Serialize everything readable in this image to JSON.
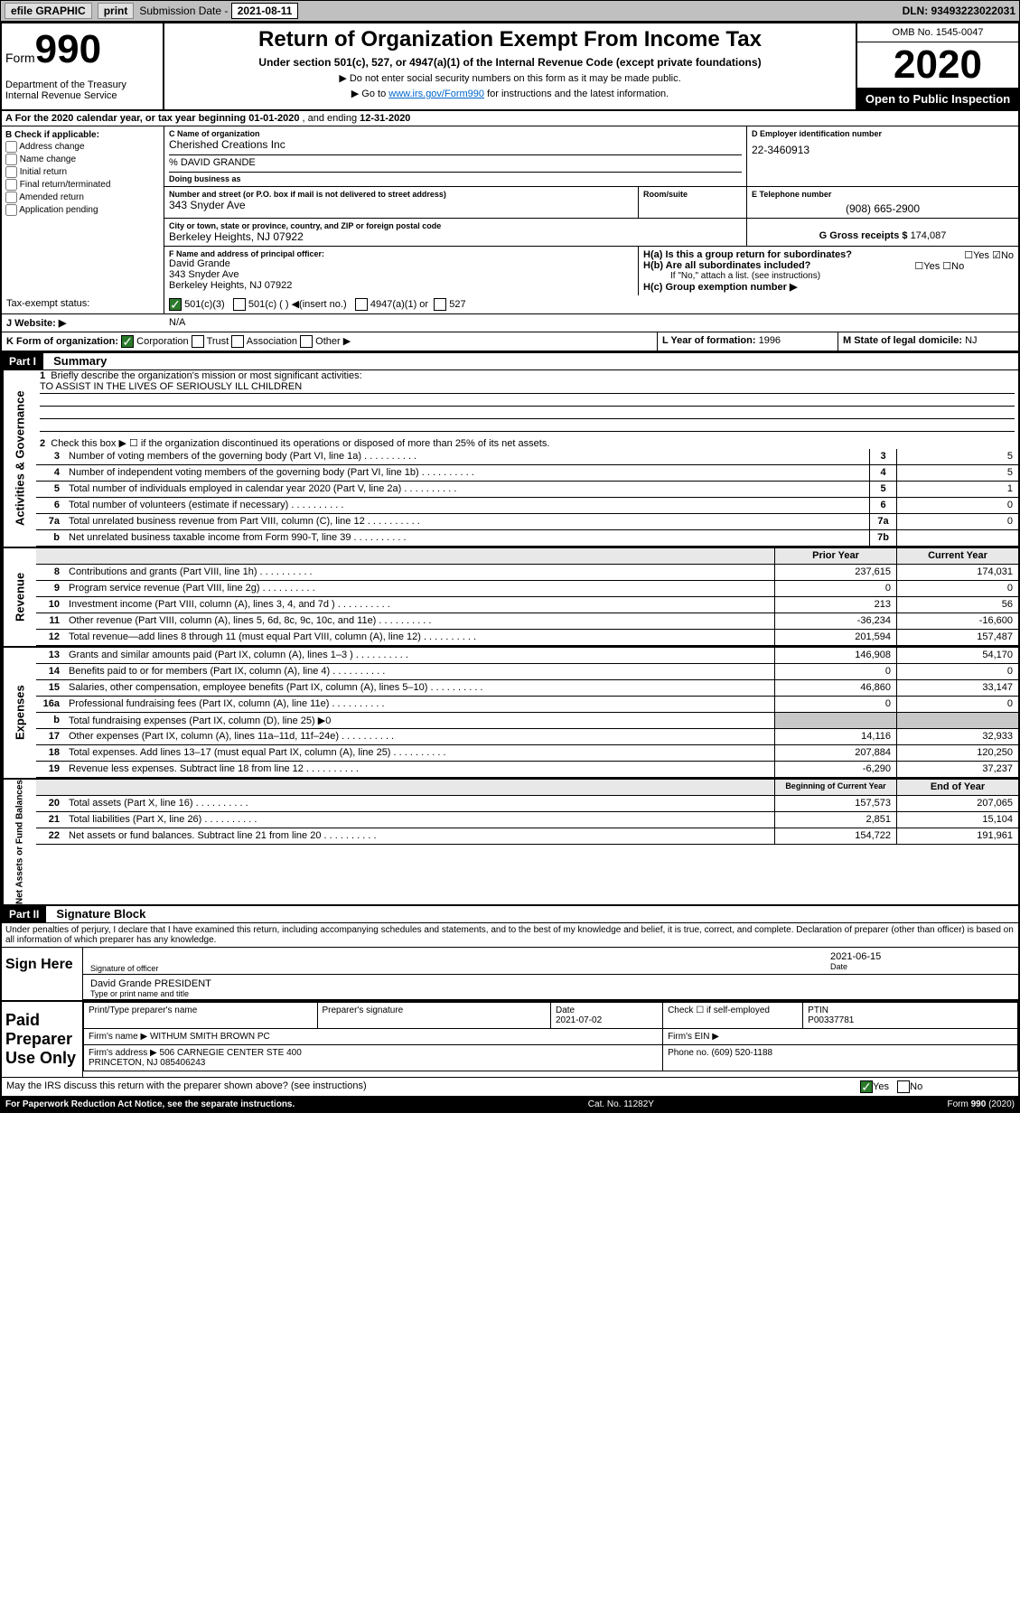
{
  "topbar": {
    "efile": "efile GRAPHIC",
    "print": "print",
    "subdate_label": "Submission Date - ",
    "subdate": "2021-08-11",
    "dln": "DLN: 93493223022031"
  },
  "header": {
    "form_label": "Form",
    "form_num": "990",
    "dept": "Department of the Treasury\nInternal Revenue Service",
    "title": "Return of Organization Exempt From Income Tax",
    "subtitle": "Under section 501(c), 527, or 4947(a)(1) of the Internal Revenue Code (except private foundations)",
    "note1": "▶ Do not enter social security numbers on this form as it may be made public.",
    "note2_pre": "▶ Go to ",
    "note2_link": "www.irs.gov/Form990",
    "note2_post": " for instructions and the latest information.",
    "omb": "OMB No. 1545-0047",
    "year": "2020",
    "inspect": "Open to Public Inspection"
  },
  "row_a": {
    "text_pre": "A   For the 2020 calendar year, or tax year beginning ",
    "begin": "01-01-2020",
    "mid": "   , and ending ",
    "end": "12-31-2020"
  },
  "section_b": {
    "label": "B Check if applicable:",
    "items": [
      "Address change",
      "Name change",
      "Initial return",
      "Final return/terminated",
      "Amended return",
      "Application pending"
    ]
  },
  "section_c": {
    "name_lbl": "C Name of organization",
    "name": "Cherished Creations Inc",
    "care": "% DAVID GRANDE",
    "dba_lbl": "Doing business as",
    "addr_lbl": "Number and street (or P.O. box if mail is not delivered to street address)",
    "room_lbl": "Room/suite",
    "addr": "343 Snyder Ave",
    "city_lbl": "City or town, state or province, country, and ZIP or foreign postal code",
    "city": "Berkeley Heights, NJ  07922"
  },
  "section_d": {
    "lbl": "D Employer identification number",
    "val": "22-3460913"
  },
  "section_e": {
    "lbl": "E Telephone number",
    "val": "(908) 665-2900"
  },
  "section_g": {
    "lbl": "G Gross receipts $",
    "val": "174,087"
  },
  "section_f": {
    "lbl": "F  Name and address of principal officer:",
    "name": "David Grande",
    "addr": "343 Snyder Ave",
    "city": "Berkeley Heights, NJ  07922"
  },
  "section_h": {
    "a": "H(a)  Is this a group return for subordinates?",
    "b": "H(b)  Are all subordinates included?",
    "note": "If \"No,\" attach a list. (see instructions)",
    "c": "H(c)  Group exemption number ▶"
  },
  "tax_status": {
    "lbl": "Tax-exempt status:",
    "opt1": "501(c)(3)",
    "opt2": "501(c) (  ) ◀(insert no.)",
    "opt3": "4947(a)(1) or",
    "opt4": "527"
  },
  "website": {
    "lbl": "J   Website: ▶",
    "val": "N/A"
  },
  "row_k": {
    "lbl": "K Form of organization:",
    "opts": [
      "Corporation",
      "Trust",
      "Association",
      "Other ▶"
    ]
  },
  "row_lm": {
    "l_lbl": "L Year of formation:",
    "l_val": "1996",
    "m_lbl": "M State of legal domicile:",
    "m_val": "NJ"
  },
  "part1": {
    "hdr": "Part I",
    "title": "Summary",
    "line1": "Briefly describe the organization's mission or most significant activities:",
    "mission": "TO ASSIST IN THE LIVES OF SERIOUSLY ILL CHILDREN",
    "line2": "Check this box ▶ ☐  if the organization discontinued its operations or disposed of more than 25% of its net assets.",
    "sections": {
      "gov": "Activities & Governance",
      "rev": "Revenue",
      "exp": "Expenses",
      "net": "Net Assets or Fund Balances"
    },
    "col_prior": "Prior Year",
    "col_curr": "Current Year",
    "col_begin": "Beginning of Current Year",
    "col_end": "End of Year",
    "lines": [
      {
        "n": "3",
        "d": "Number of voting members of the governing body (Part VI, line 1a)",
        "box": "3",
        "v": "5"
      },
      {
        "n": "4",
        "d": "Number of independent voting members of the governing body (Part VI, line 1b)",
        "box": "4",
        "v": "5"
      },
      {
        "n": "5",
        "d": "Total number of individuals employed in calendar year 2020 (Part V, line 2a)",
        "box": "5",
        "v": "1"
      },
      {
        "n": "6",
        "d": "Total number of volunteers (estimate if necessary)",
        "box": "6",
        "v": "0"
      },
      {
        "n": "7a",
        "d": "Total unrelated business revenue from Part VIII, column (C), line 12",
        "box": "7a",
        "v": "0"
      },
      {
        "n": "b",
        "d": "Net unrelated business taxable income from Form 990-T, line 39",
        "box": "7b",
        "v": ""
      }
    ],
    "rev_lines": [
      {
        "n": "8",
        "d": "Contributions and grants (Part VIII, line 1h)",
        "p": "237,615",
        "c": "174,031"
      },
      {
        "n": "9",
        "d": "Program service revenue (Part VIII, line 2g)",
        "p": "0",
        "c": "0"
      },
      {
        "n": "10",
        "d": "Investment income (Part VIII, column (A), lines 3, 4, and 7d )",
        "p": "213",
        "c": "56"
      },
      {
        "n": "11",
        "d": "Other revenue (Part VIII, column (A), lines 5, 6d, 8c, 9c, 10c, and 11e)",
        "p": "-36,234",
        "c": "-16,600"
      },
      {
        "n": "12",
        "d": "Total revenue—add lines 8 through 11 (must equal Part VIII, column (A), line 12)",
        "p": "201,594",
        "c": "157,487"
      }
    ],
    "exp_lines": [
      {
        "n": "13",
        "d": "Grants and similar amounts paid (Part IX, column (A), lines 1–3 )",
        "p": "146,908",
        "c": "54,170"
      },
      {
        "n": "14",
        "d": "Benefits paid to or for members (Part IX, column (A), line 4)",
        "p": "0",
        "c": "0"
      },
      {
        "n": "15",
        "d": "Salaries, other compensation, employee benefits (Part IX, column (A), lines 5–10)",
        "p": "46,860",
        "c": "33,147"
      },
      {
        "n": "16a",
        "d": "Professional fundraising fees (Part IX, column (A), line 11e)",
        "p": "0",
        "c": "0"
      },
      {
        "n": "b",
        "d": "Total fundraising expenses (Part IX, column (D), line 25) ▶0",
        "p": "",
        "c": "",
        "grey": true
      },
      {
        "n": "17",
        "d": "Other expenses (Part IX, column (A), lines 11a–11d, 11f–24e)",
        "p": "14,116",
        "c": "32,933"
      },
      {
        "n": "18",
        "d": "Total expenses. Add lines 13–17 (must equal Part IX, column (A), line 25)",
        "p": "207,884",
        "c": "120,250"
      },
      {
        "n": "19",
        "d": "Revenue less expenses. Subtract line 18 from line 12",
        "p": "-6,290",
        "c": "37,237"
      }
    ],
    "net_lines": [
      {
        "n": "20",
        "d": "Total assets (Part X, line 16)",
        "p": "157,573",
        "c": "207,065"
      },
      {
        "n": "21",
        "d": "Total liabilities (Part X, line 26)",
        "p": "2,851",
        "c": "15,104"
      },
      {
        "n": "22",
        "d": "Net assets or fund balances. Subtract line 21 from line 20",
        "p": "154,722",
        "c": "191,961"
      }
    ]
  },
  "part2": {
    "hdr": "Part II",
    "title": "Signature Block",
    "declare": "Under penalties of perjury, I declare that I have examined this return, including accompanying schedules and statements, and to the best of my knowledge and belief, it is true, correct, and complete. Declaration of preparer (other than officer) is based on all information of which preparer has any knowledge.",
    "sign_here": "Sign Here",
    "sig_officer": "Signature of officer",
    "sig_date": "2021-06-15",
    "date_lbl": "Date",
    "officer_name": "David Grande  PRESIDENT",
    "name_lbl": "Type or print name and title",
    "paid": "Paid Preparer Use Only",
    "prep_name_lbl": "Print/Type preparer's name",
    "prep_sig_lbl": "Preparer's signature",
    "prep_date_lbl": "Date",
    "prep_date": "2021-07-02",
    "self_emp": "Check ☐ if self-employed",
    "ptin_lbl": "PTIN",
    "ptin": "P00337781",
    "firm_name_lbl": "Firm's name    ▶",
    "firm_name": "WITHUM SMITH BROWN PC",
    "firm_ein_lbl": "Firm's EIN ▶",
    "firm_addr_lbl": "Firm's address ▶",
    "firm_addr": "506 CARNEGIE CENTER STE 400\nPRINCETON, NJ  085406243",
    "phone_lbl": "Phone no.",
    "phone": "(609) 520-1188",
    "discuss": "May the IRS discuss this return with the preparer shown above? (see instructions)"
  },
  "footer": {
    "left": "For Paperwork Reduction Act Notice, see the separate instructions.",
    "mid": "Cat. No. 11282Y",
    "right": "Form 990 (2020)"
  },
  "yesno": {
    "yes": "Yes",
    "no": "No"
  }
}
